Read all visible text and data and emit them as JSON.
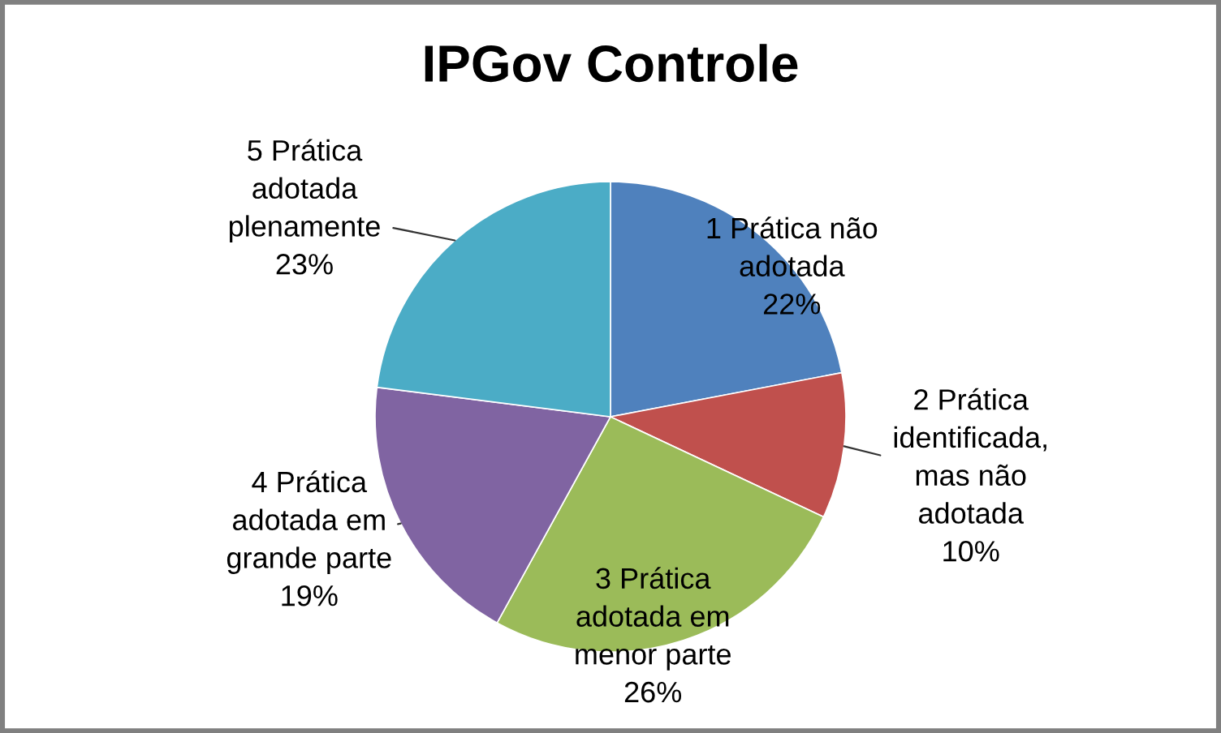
{
  "chart_data": {
    "type": "pie",
    "title": "IPGov Controle",
    "categories": [
      "1 Prática não\nadotada",
      "2 Prática\nidentificada,\nmas não\nadotada",
      "3 Prática\nadotada em\nmenor parte",
      "4 Prática\nadotada em\ngrande parte",
      "5 Prática\nadotada\nplenamente"
    ],
    "values": [
      22,
      10,
      26,
      19,
      23
    ],
    "value_labels": [
      "22%",
      "10%",
      "26%",
      "19%",
      "23%"
    ],
    "colors": [
      "#4f81bd",
      "#c0504d",
      "#9bbb59",
      "#8064a2",
      "#4bacc6"
    ]
  }
}
